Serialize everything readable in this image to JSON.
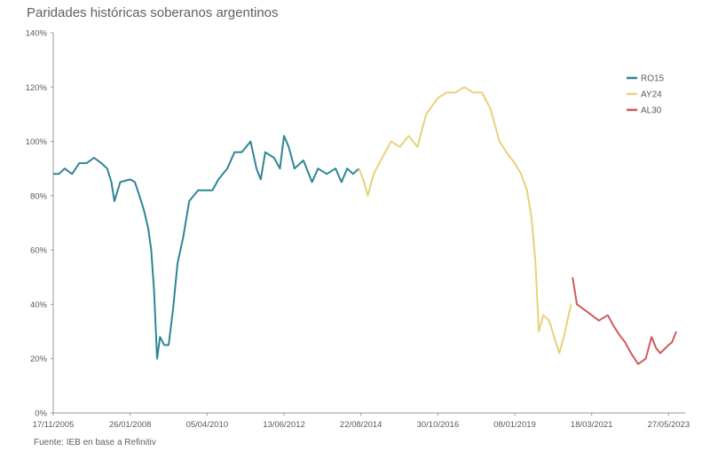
{
  "chart_data": {
    "type": "line",
    "title": "Paridades históricas soberanos argentinos",
    "source": "Fuente: IEB en base a Refinitiv",
    "xlabel": "",
    "ylabel": "",
    "x_range": [
      "2005-11-17",
      "2023-11-15"
    ],
    "x_ticks": [
      "17/11/2005",
      "26/01/2008",
      "05/04/2010",
      "13/06/2012",
      "22/08/2014",
      "30/10/2016",
      "08/01/2019",
      "18/03/2021",
      "27/05/2023"
    ],
    "y_ticks": [
      "0%",
      "20%",
      "40%",
      "60%",
      "80%",
      "100%",
      "120%",
      "140%"
    ],
    "ylim": [
      0,
      140
    ],
    "grid": false,
    "legend_position": "right",
    "series": [
      {
        "name": "RO15",
        "color": "#2e8596",
        "points": [
          [
            "2005-11-17",
            88
          ],
          [
            "2006-01-15",
            88
          ],
          [
            "2006-03-15",
            90
          ],
          [
            "2006-06-01",
            88
          ],
          [
            "2006-08-15",
            92
          ],
          [
            "2006-11-01",
            92
          ],
          [
            "2007-01-15",
            94
          ],
          [
            "2007-04-01",
            92
          ],
          [
            "2007-06-01",
            90
          ],
          [
            "2007-07-15",
            85
          ],
          [
            "2007-08-15",
            78
          ],
          [
            "2007-10-15",
            85
          ],
          [
            "2008-01-26",
            86
          ],
          [
            "2008-03-15",
            85
          ],
          [
            "2008-05-01",
            80
          ],
          [
            "2008-06-15",
            75
          ],
          [
            "2008-08-01",
            68
          ],
          [
            "2008-09-01",
            60
          ],
          [
            "2008-10-01",
            45
          ],
          [
            "2008-11-01",
            20
          ],
          [
            "2008-12-01",
            28
          ],
          [
            "2009-01-15",
            25
          ],
          [
            "2009-03-01",
            25
          ],
          [
            "2009-04-15",
            38
          ],
          [
            "2009-06-01",
            55
          ],
          [
            "2009-08-01",
            65
          ],
          [
            "2009-10-01",
            78
          ],
          [
            "2010-01-01",
            82
          ],
          [
            "2010-04-05",
            82
          ],
          [
            "2010-06-01",
            82
          ],
          [
            "2010-08-01",
            86
          ],
          [
            "2010-11-01",
            90
          ],
          [
            "2011-01-15",
            96
          ],
          [
            "2011-04-01",
            96
          ],
          [
            "2011-07-01",
            100
          ],
          [
            "2011-09-01",
            90
          ],
          [
            "2011-10-15",
            86
          ],
          [
            "2011-12-01",
            96
          ],
          [
            "2012-03-01",
            94
          ],
          [
            "2012-05-01",
            90
          ],
          [
            "2012-06-13",
            102
          ],
          [
            "2012-08-01",
            98
          ],
          [
            "2012-10-01",
            90
          ],
          [
            "2013-01-01",
            93
          ],
          [
            "2013-04-01",
            85
          ],
          [
            "2013-06-01",
            90
          ],
          [
            "2013-09-01",
            88
          ],
          [
            "2013-12-01",
            90
          ],
          [
            "2014-02-01",
            85
          ],
          [
            "2014-04-01",
            90
          ],
          [
            "2014-06-01",
            88
          ],
          [
            "2014-08-01",
            90
          ]
        ]
      },
      {
        "name": "AY24",
        "color": "#e9d17a",
        "points": [
          [
            "2014-08-01",
            90
          ],
          [
            "2014-09-15",
            86
          ],
          [
            "2014-11-01",
            80
          ],
          [
            "2015-01-01",
            88
          ],
          [
            "2015-04-01",
            94
          ],
          [
            "2015-07-01",
            100
          ],
          [
            "2015-10-01",
            98
          ],
          [
            "2016-01-01",
            102
          ],
          [
            "2016-04-01",
            98
          ],
          [
            "2016-07-01",
            110
          ],
          [
            "2016-10-30",
            116
          ],
          [
            "2017-02-01",
            118
          ],
          [
            "2017-05-01",
            118
          ],
          [
            "2017-08-01",
            120
          ],
          [
            "2017-11-01",
            118
          ],
          [
            "2018-02-01",
            118
          ],
          [
            "2018-05-01",
            112
          ],
          [
            "2018-08-01",
            100
          ],
          [
            "2018-11-01",
            95
          ],
          [
            "2019-01-08",
            92
          ],
          [
            "2019-03-15",
            88
          ],
          [
            "2019-05-15",
            82
          ],
          [
            "2019-07-01",
            72
          ],
          [
            "2019-08-12",
            55
          ],
          [
            "2019-09-15",
            30
          ],
          [
            "2019-11-01",
            36
          ],
          [
            "2020-01-01",
            34
          ],
          [
            "2020-03-01",
            27
          ],
          [
            "2020-04-15",
            22
          ],
          [
            "2020-06-01",
            28
          ],
          [
            "2020-08-15",
            40
          ]
        ]
      },
      {
        "name": "AL30",
        "color": "#d05a5a",
        "points": [
          [
            "2020-09-01",
            50
          ],
          [
            "2020-10-15",
            40
          ],
          [
            "2021-01-01",
            38
          ],
          [
            "2021-03-18",
            36
          ],
          [
            "2021-06-01",
            34
          ],
          [
            "2021-09-01",
            36
          ],
          [
            "2021-11-01",
            32
          ],
          [
            "2022-01-15",
            28
          ],
          [
            "2022-03-01",
            26
          ],
          [
            "2022-05-01",
            22
          ],
          [
            "2022-07-15",
            18
          ],
          [
            "2022-10-01",
            20
          ],
          [
            "2022-12-01",
            28
          ],
          [
            "2023-01-15",
            24
          ],
          [
            "2023-03-01",
            22
          ],
          [
            "2023-05-27",
            25
          ],
          [
            "2023-07-01",
            26
          ],
          [
            "2023-08-15",
            30
          ]
        ]
      }
    ]
  }
}
